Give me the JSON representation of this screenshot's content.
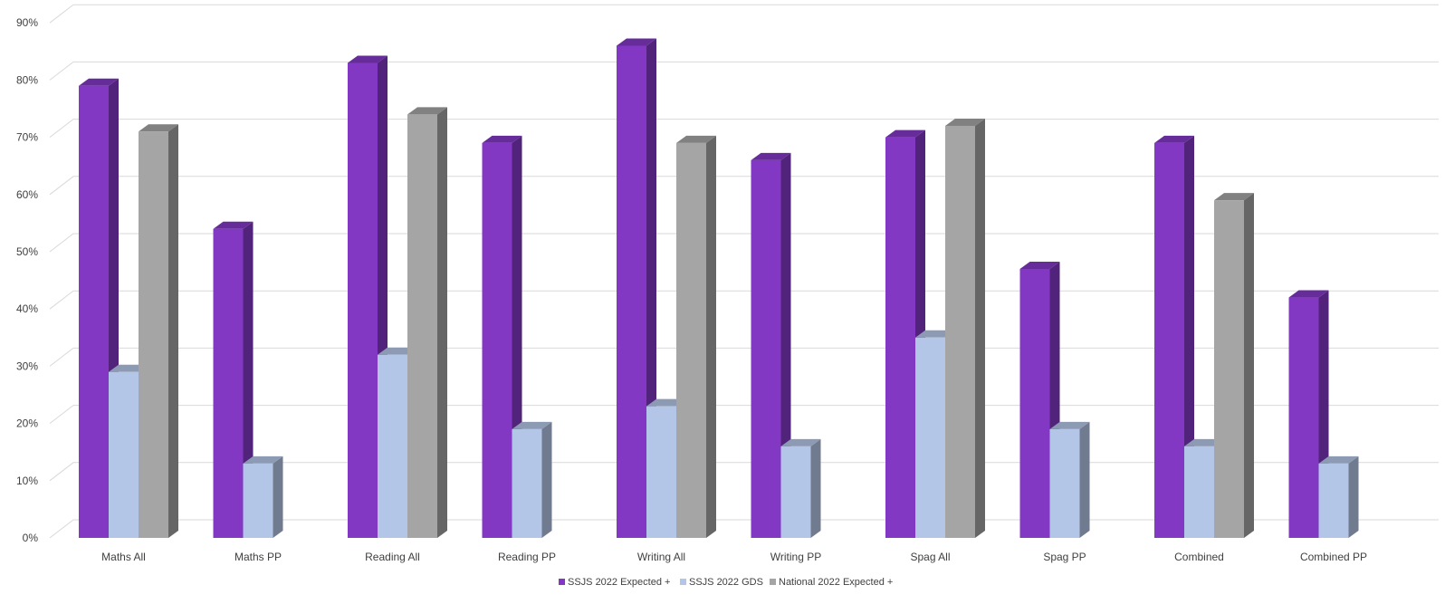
{
  "chart_data": {
    "type": "bar",
    "variant": "3d-clustered-column",
    "categories": [
      "Maths All",
      "Maths PP",
      "Reading All",
      "Reading PP",
      "Writing All",
      "Writing PP",
      "Spag All",
      "Spag PP",
      "Combined",
      "Combined PP"
    ],
    "series": [
      {
        "name": "SSJS 2022  Expected +",
        "color": "#8338C4",
        "values": [
          79,
          54,
          83,
          69,
          86,
          66,
          70,
          47,
          69,
          42
        ]
      },
      {
        "name": "SSJS 2022 GDS",
        "color": "#B4C6E7",
        "values": [
          29,
          13,
          32,
          19,
          23,
          16,
          35,
          19,
          16,
          13
        ]
      },
      {
        "name": "National  2022 Expected +",
        "color": "#A5A5A5",
        "values": [
          71,
          null,
          74,
          null,
          69,
          null,
          72,
          null,
          59,
          null
        ]
      }
    ],
    "y_ticks": [
      "0%",
      "10%",
      "20%",
      "30%",
      "40%",
      "50%",
      "60%",
      "70%",
      "80%",
      "90%"
    ],
    "ylim": [
      0,
      90
    ],
    "grid": true,
    "legend": "bottom"
  }
}
